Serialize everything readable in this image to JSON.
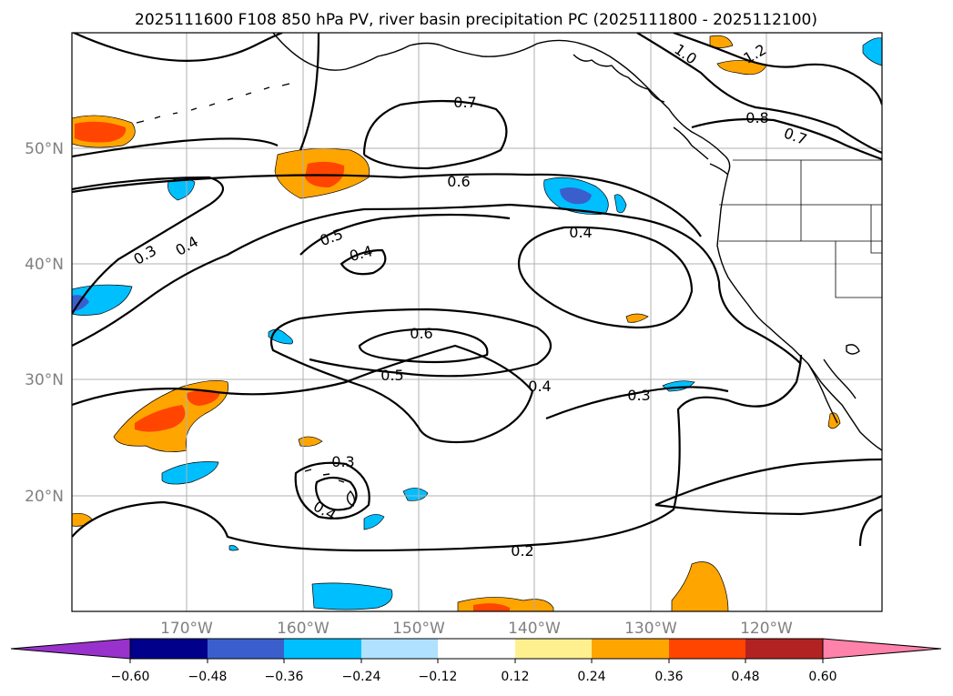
{
  "title": "2025111600 F108 850 hPa PV, river basin precipitation PC (2025111800 - 2025112100)",
  "lat_labels": [
    "50°N",
    "40°N",
    "30°N",
    "20°N"
  ],
  "lon_labels": [
    "170°W",
    "160°W",
    "150°W",
    "140°W",
    "130°W",
    "120°W"
  ],
  "contour_labels": [
    "1.0",
    "1.2",
    "0.7",
    "0.8",
    "0.7",
    "0.6",
    "0.5",
    "0.4",
    "0.4",
    "0.3",
    "0.4",
    "0.6",
    "0.5",
    "0.4",
    "0.3",
    "0.3",
    "0.4",
    "0.2"
  ],
  "colorbar": {
    "tick_labels": [
      "−0.60",
      "−0.48",
      "−0.36",
      "−0.24",
      "−0.12",
      "0.12",
      "0.24",
      "0.36",
      "0.48",
      "0.60"
    ],
    "colors": [
      "#9932cc",
      "#00008b",
      "#3a5fcd",
      "#00bfff",
      "#b0e2ff",
      "#ffffff",
      "#fff08f",
      "#ffa500",
      "#ff4500",
      "#b22222",
      "#ff82ab"
    ]
  },
  "chart_data": {
    "type": "heatmap",
    "title": "2025111600 F108 850 hPa PV, river basin precipitation PC (2025111800 - 2025112100)",
    "lon_range_deg": [
      -180,
      -110
    ],
    "lat_range_deg": [
      10,
      60
    ],
    "contour_levels": [
      0.2,
      0.3,
      0.4,
      0.5,
      0.6,
      0.7,
      0.8,
      1.0,
      1.2
    ],
    "colorbar_levels": [
      -0.6,
      -0.48,
      -0.36,
      -0.24,
      -0.12,
      0.12,
      0.24,
      0.36,
      0.48,
      0.6
    ]
  }
}
